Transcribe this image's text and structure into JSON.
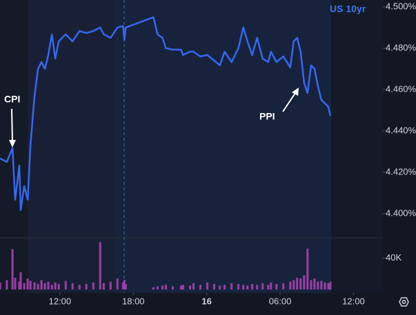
{
  "chart_data": [
    {
      "type": "line",
      "title": "US 10yr",
      "color": "#3568f0",
      "annotations": [
        "CPI",
        "PPI"
      ],
      "x": [
        7.1,
        7.66,
        8.12,
        8.34,
        8.68,
        8.79,
        9.08,
        9.36,
        9.59,
        9.92,
        10.21,
        10.49,
        10.77,
        11.05,
        11.34,
        11.62,
        11.9,
        12.47,
        13.03,
        13.6,
        14.16,
        14.73,
        15.29,
        15.58,
        16.14,
        16.7,
        17.16,
        17.27,
        17.38,
        19.64,
        19.98,
        20.38,
        20.66,
        21.22,
        21.9,
        22.07,
        22.64,
        22.92,
        23.48,
        24.05,
        24.61,
        25.07,
        25.46,
        26.03,
        26.59,
        26.99,
        27.33,
        27.72,
        28.12,
        28.57,
        29.02,
        29.25,
        29.7,
        30.26,
        30.83,
        31.11,
        31.39,
        31.68,
        31.96,
        32.24,
        32.53,
        32.81,
        33.09,
        33.37,
        33.66,
        33.94,
        34.11
      ],
      "values": [
        4.4267,
        4.425,
        4.4317,
        4.4067,
        4.4233,
        4.4017,
        4.4133,
        4.4067,
        4.4333,
        4.4567,
        4.47,
        4.4733,
        4.47,
        4.4767,
        4.4867,
        4.475,
        4.4833,
        4.4867,
        4.4833,
        4.4883,
        4.4873,
        4.4883,
        4.49,
        4.4867,
        4.485,
        4.49,
        4.4907,
        4.484,
        4.49,
        4.495,
        4.4867,
        4.485,
        4.48,
        4.4793,
        4.4793,
        4.4767,
        4.4783,
        4.4783,
        4.476,
        4.4767,
        4.474,
        4.4717,
        4.4783,
        4.4733,
        4.48,
        4.49,
        4.4833,
        4.4767,
        4.485,
        4.475,
        4.4733,
        4.4783,
        4.4733,
        4.476,
        4.4707,
        4.4833,
        4.485,
        4.4783,
        4.4633,
        4.4583,
        4.4717,
        4.47,
        4.4617,
        4.455,
        4.4533,
        4.4517,
        4.4473
      ],
      "xlim": [
        7.1,
        38.4
      ],
      "ylim": [
        4.3883,
        4.5033
      ],
      "yticks": [
        {
          "value": 4.4,
          "label": "4.400%"
        },
        {
          "value": 4.42,
          "label": "4.420%"
        },
        {
          "value": 4.44,
          "label": "4.440%"
        },
        {
          "value": 4.46,
          "label": "4.460%"
        },
        {
          "value": 4.48,
          "label": "4.480%"
        },
        {
          "value": 4.5,
          "label": "4.500%"
        }
      ]
    },
    {
      "type": "bar",
      "color": "#9b3fa6",
      "x": [
        7.1,
        7.66,
        8.12,
        8.34,
        8.68,
        8.79,
        9.08,
        9.36,
        9.59,
        9.92,
        10.21,
        10.49,
        10.77,
        11.05,
        11.34,
        11.62,
        11.9,
        12.47,
        13.03,
        13.6,
        14.16,
        14.73,
        15.29,
        15.58,
        16.14,
        16.7,
        17.16,
        17.27,
        17.38,
        19.64,
        19.98,
        20.38,
        20.66,
        21.22,
        21.9,
        22.07,
        22.64,
        22.92,
        23.48,
        24.05,
        24.61,
        25.07,
        25.46,
        26.03,
        26.59,
        26.99,
        27.33,
        27.72,
        28.12,
        28.57,
        29.02,
        29.25,
        29.7,
        30.26,
        30.83,
        31.11,
        31.39,
        31.68,
        31.96,
        32.24,
        32.53,
        32.81,
        33.09,
        33.37,
        33.66,
        33.94,
        34.11
      ],
      "values": [
        9000,
        12000,
        51500,
        15000,
        10000,
        22000,
        8000,
        14000,
        11000,
        9000,
        7000,
        12000,
        8000,
        10000,
        6000,
        9000,
        7000,
        11000,
        8000,
        6000,
        7000,
        9000,
        60400,
        8000,
        10000,
        14000,
        9000,
        12000,
        7000,
        3000,
        4000,
        5000,
        6000,
        4000,
        5000,
        6000,
        5000,
        8000,
        6000,
        9000,
        7000,
        5000,
        6000,
        8000,
        7000,
        6000,
        5000,
        7000,
        6000,
        8000,
        6000,
        9000,
        7000,
        8000,
        10000,
        12000,
        15000,
        14000,
        18000,
        52000,
        12000,
        14000,
        10000,
        11000,
        9000,
        8000,
        10000
      ],
      "xlim": [
        7.1,
        38.4
      ],
      "ylim": [
        0,
        66000
      ],
      "yticks": [
        {
          "value": 40000,
          "label": "40K"
        }
      ],
      "xticks": [
        {
          "value": 12,
          "label": "12:00"
        },
        {
          "value": 18,
          "label": "18:00"
        },
        {
          "value": 24,
          "label": "16"
        },
        {
          "value": 30,
          "label": "06:00"
        },
        {
          "value": 36,
          "label": "12:00"
        }
      ]
    }
  ]
}
